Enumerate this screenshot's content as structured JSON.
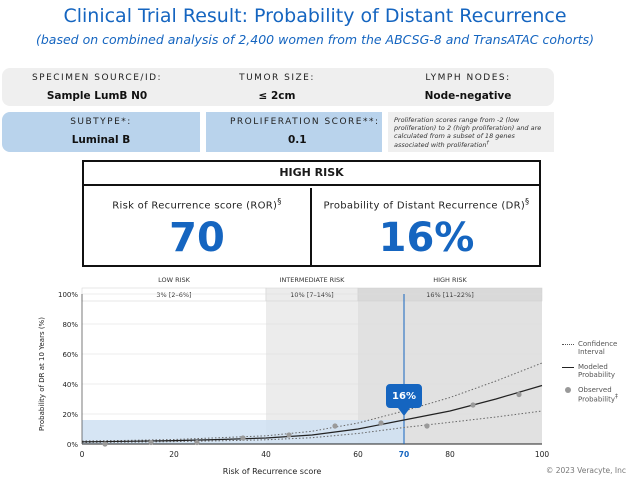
{
  "header": {
    "title": "Clinical Trial Result: Probability of Distant Recurrence",
    "subtitle": "(based on combined analysis of 2,400 women from the ABCSG-8 and TransATAC cohorts)"
  },
  "specimen": {
    "source_label": "SPECIMEN SOURCE/ID:",
    "source_value": "Sample LumB N0",
    "tumor_label": "TUMOR SIZE:",
    "tumor_value": "≤ 2cm",
    "nodes_label": "LYMPH NODES:",
    "nodes_value": "Node-negative",
    "subtype_label": "SUBTYPE*:",
    "subtype_value": "Luminal B",
    "prolif_label": "PROLIFERATION SCORE**:",
    "prolif_value": "0.1",
    "prolif_note": "Proliferation scores range from -2 (low proliferation) to 2 (high proliferation) and are calculated from a subset of 18 genes associated with proliferation",
    "prolif_note_mark": "†"
  },
  "risk": {
    "header": "HIGH RISK",
    "ror_label": "Risk of Recurrence score (ROR)",
    "ror_mark": "§",
    "ror_value": "70",
    "dr_label": "Probability of Distant Recurrence (DR)",
    "dr_mark": "§",
    "dr_value": "16%"
  },
  "chart_data": {
    "type": "line",
    "xlabel": "Risk of Recurrence score",
    "ylabel": "Probability of DR at 10 Years (%)",
    "xlim": [
      0,
      100
    ],
    "ylim": [
      0,
      100
    ],
    "x_ticks": [
      "0",
      "20",
      "40",
      "60",
      "70",
      "80",
      "100"
    ],
    "y_ticks": [
      "0%",
      "20%",
      "40%",
      "60%",
      "80%",
      "100%"
    ],
    "risk_bands": [
      {
        "label": "LOW RISK",
        "range": "3% [2–6%]",
        "x_start": 0,
        "x_end": 40
      },
      {
        "label": "INTERMEDIATE RISK",
        "range": "10% [7–14%]",
        "x_start": 40,
        "x_end": 60
      },
      {
        "label": "HIGH RISK",
        "range": "16% [11–22%]",
        "x_start": 60,
        "x_end": 100
      }
    ],
    "modeled": {
      "x": [
        0,
        10,
        20,
        30,
        40,
        50,
        60,
        70,
        80,
        90,
        100
      ],
      "y": [
        1.5,
        1.8,
        2.3,
        3.0,
        4.0,
        6.0,
        10.0,
        16.0,
        22.0,
        30.0,
        39.0
      ]
    },
    "ci_upper": {
      "x": [
        0,
        10,
        20,
        30,
        40,
        50,
        60,
        70,
        80,
        90,
        100
      ],
      "y": [
        2.0,
        2.4,
        3.0,
        4.2,
        5.5,
        8.5,
        14.0,
        22.0,
        31.0,
        42.0,
        54.0
      ]
    },
    "ci_lower": {
      "x": [
        0,
        10,
        20,
        30,
        40,
        50,
        60,
        70,
        80,
        90,
        100
      ],
      "y": [
        1.0,
        1.2,
        1.6,
        2.1,
        2.8,
        4.2,
        7.0,
        11.0,
        14.5,
        18.0,
        22.0
      ]
    },
    "observed": {
      "x": [
        5,
        15,
        25,
        35,
        45,
        55,
        65,
        75,
        85,
        95
      ],
      "y": [
        0,
        1,
        1,
        4,
        6,
        12,
        14,
        12,
        26,
        33
      ]
    },
    "marker": {
      "x": 70,
      "y": 16,
      "label": "16%"
    },
    "legend": {
      "ci": "Confidence Interval",
      "modeled": "Modeled Probability",
      "observed": "Observed Probability",
      "observed_mark": "‡"
    },
    "colors": {
      "accent": "#1565c0",
      "band_low": "#ffffff",
      "band_int": "#ececec",
      "band_high": "#e1e1e1",
      "shade": "#cfe0f2"
    }
  },
  "footer": {
    "copyright": "© 2023 Veracyte, Inc"
  }
}
